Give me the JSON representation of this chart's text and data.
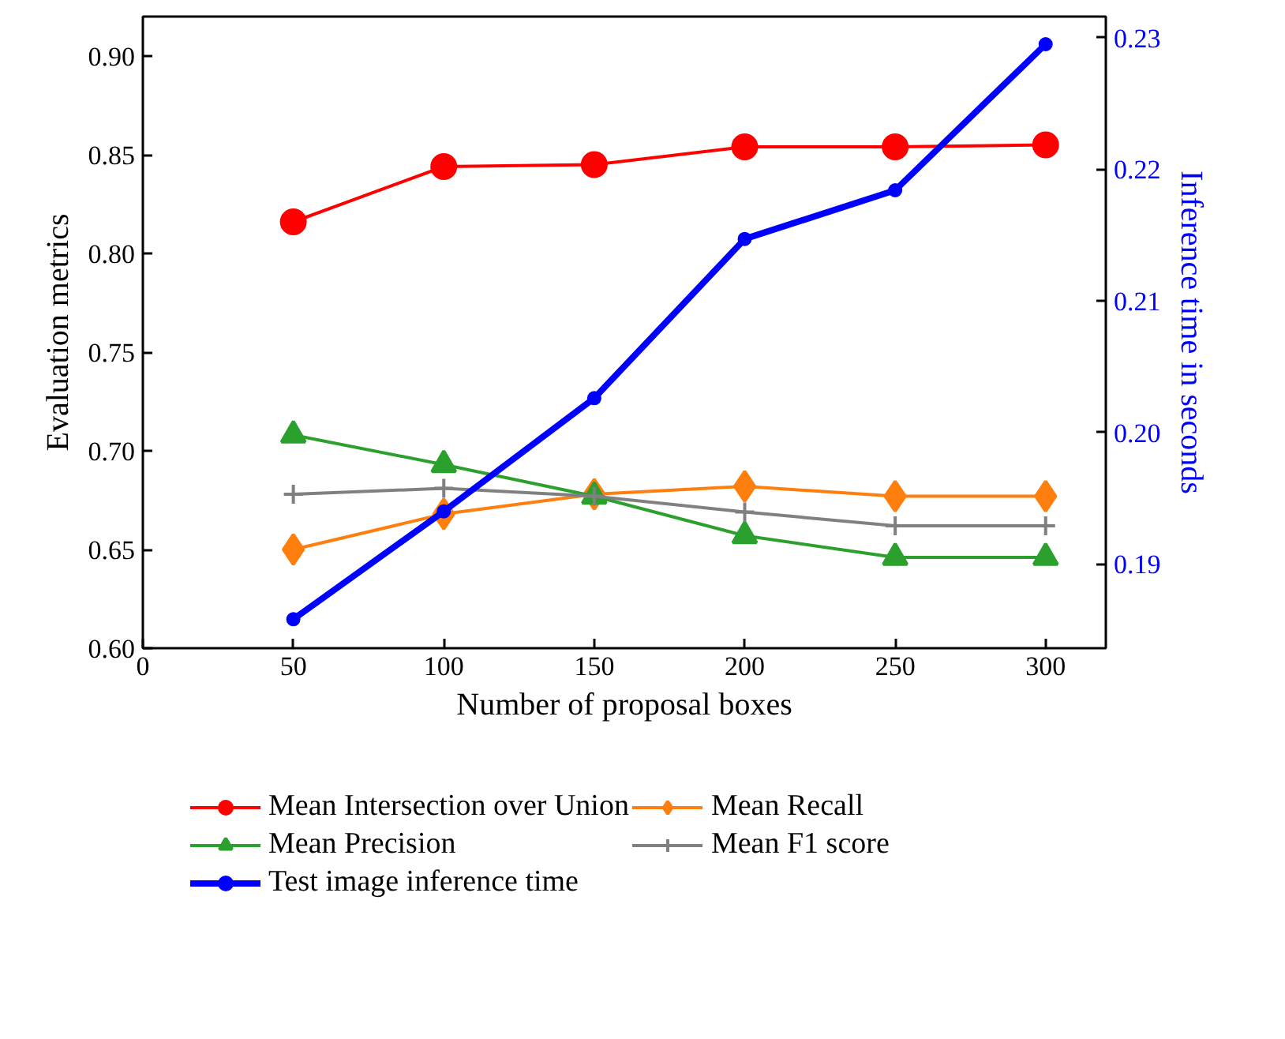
{
  "chart_data": {
    "type": "line",
    "xlabel": "Number of proposal boxes",
    "ylabel": "Evaluation metrics",
    "y2label": "Inference time in seconds",
    "x": [
      50,
      100,
      150,
      200,
      250,
      300
    ],
    "xlim": [
      0,
      320
    ],
    "xticks": [
      0,
      50,
      100,
      150,
      200,
      250,
      300
    ],
    "ylim": [
      0.6,
      0.92
    ],
    "yticks": [
      {
        "value": 0.6,
        "label": "0.60"
      },
      {
        "value": 0.65,
        "label": "0.65"
      },
      {
        "value": 0.7,
        "label": "0.70"
      },
      {
        "value": 0.75,
        "label": "0.75"
      },
      {
        "value": 0.8,
        "label": "0.80"
      },
      {
        "value": 0.85,
        "label": "0.85"
      },
      {
        "value": 0.9,
        "label": "0.90"
      }
    ],
    "y2lim": [
      0.1836,
      0.2316
    ],
    "y2ticks": [
      0.19,
      {
        "value": 0.2,
        "label": "0.20"
      },
      0.21,
      0.22,
      0.23
    ],
    "grid": false,
    "legend": "bottom",
    "line_style": "solid",
    "series": [
      {
        "name": "Mean Intersection over Union",
        "color": "#ff0000",
        "marker": "circle",
        "values": [
          0.816,
          0.844,
          0.845,
          0.854,
          0.854,
          0.855
        ]
      },
      {
        "name": "Mean Recall",
        "color": "#ff7f0e",
        "marker": "diamond",
        "values": [
          0.65,
          0.668,
          0.678,
          0.682,
          0.677,
          0.677
        ]
      },
      {
        "name": "Mean Precision",
        "color": "#2ca02c",
        "marker": "triangle",
        "values": [
          0.708,
          0.693,
          0.677,
          0.657,
          0.646,
          0.646
        ]
      },
      {
        "name": "Mean F1 score",
        "color": "#808080",
        "marker": "cross",
        "values": [
          0.678,
          0.681,
          0.677,
          0.669,
          0.662,
          0.662
        ]
      },
      {
        "name": "Test image inference time",
        "color": "#0000ff",
        "marker": "circle",
        "axis": "y2",
        "values": [
          0.1858,
          0.194,
          0.2026,
          0.2147,
          0.2184,
          0.2295
        ]
      }
    ]
  }
}
